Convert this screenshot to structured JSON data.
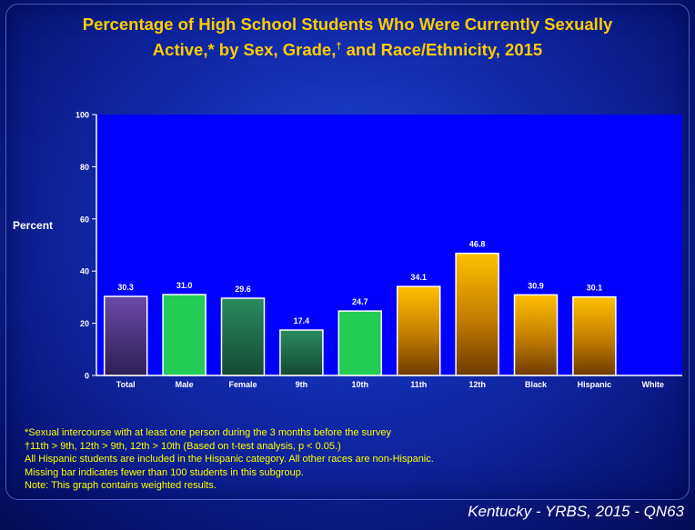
{
  "title_line1": "Percentage of High School Students Who Were Currently Sexually",
  "title_line2_a": "Active,* by Sex, Grade,",
  "title_line2_dagger": "†",
  "title_line2_b": " and Race/Ethnicity, 2015",
  "chart_data": {
    "type": "bar",
    "ylabel": "Percent",
    "ylim": [
      0,
      100
    ],
    "yticks": [
      0,
      20,
      40,
      60,
      80,
      100
    ],
    "categories": [
      "Total",
      "Male",
      "Female",
      "9th",
      "10th",
      "11th",
      "12th",
      "Black",
      "Hispanic",
      "White"
    ],
    "values": [
      30.3,
      31.0,
      29.6,
      17.4,
      24.7,
      34.1,
      46.8,
      30.9,
      30.1,
      null
    ],
    "value_labels": [
      "30.3",
      "31.0",
      "29.6",
      "17.4",
      "24.7",
      "34.1",
      "46.8",
      "30.9",
      "30.1",
      ""
    ],
    "bar_styles": [
      "purple",
      "green-light",
      "green-dark",
      "green-dark",
      "green-light",
      "gold",
      "gold",
      "gold",
      "gold",
      "none"
    ],
    "grid": false,
    "plot_background": "#0000ff"
  },
  "colors": {
    "title": "#ffcc00",
    "footnote": "#ffff00",
    "plot_background": "#0000ff",
    "bar_purple": "#5a3f96",
    "bar_green_light": "#22cc55",
    "bar_green_dark": "#1f7a52",
    "bar_gold": "#e8a400"
  },
  "footnotes": [
    "*Sexual intercourse with at least one person during the 3 months before the survey",
    "†11th > 9th, 12th > 9th, 12th > 10th (Based on t-test analysis, p < 0.05.)",
    "All Hispanic students are included in the Hispanic category.  All other races are non-Hispanic.",
    "Missing bar indicates fewer than 100 students in this subgroup.",
    "Note: This graph contains weighted results."
  ],
  "source": "Kentucky - YRBS, 2015 - QN63"
}
